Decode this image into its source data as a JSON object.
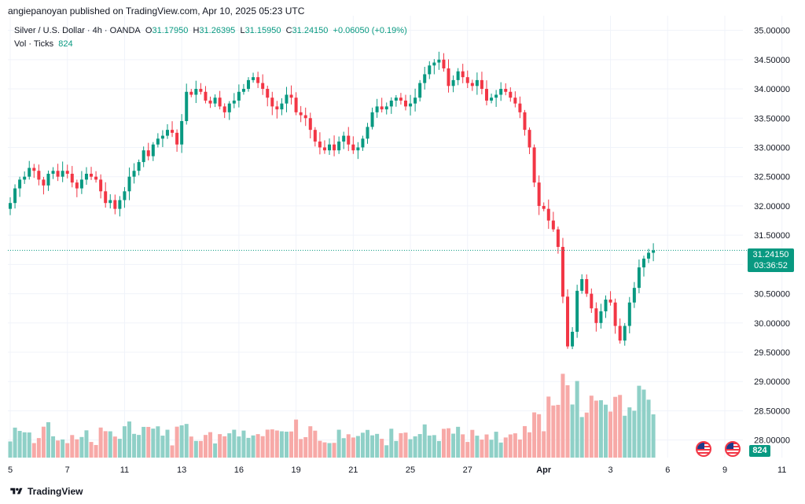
{
  "header": {
    "published": "angiepanoyan published on TradingView.com, Apr 10, 2025 05:23 UTC"
  },
  "legend": {
    "symbol": "Silver / U.S. Dollar · 4h · OANDA",
    "o_label": "O",
    "o": "31.17950",
    "h_label": "H",
    "h": "31.26395",
    "l_label": "L",
    "l": "31.15950",
    "c_label": "C",
    "c": "31.24150",
    "change": "+0.06050 (+0.19%)",
    "vol_label": "Vol · Ticks",
    "vol_value": "824"
  },
  "price_badge": {
    "price": "31.24150",
    "countdown": "03:36:52"
  },
  "volume_badge": "824",
  "footer": {
    "brand": "TradingView"
  },
  "colors": {
    "up": "#089981",
    "down": "#f23645",
    "vol_up": "#8fd0c7",
    "vol_down": "#f7a9a7",
    "grid": "#f0f3fa"
  },
  "chart_data": {
    "type": "candlestick",
    "title": "Silver / U.S. Dollar · 4h · OANDA",
    "y_axis": {
      "min": 27.7,
      "max": 35.25,
      "ticks": [
        "35.00000",
        "34.50000",
        "34.00000",
        "33.50000",
        "33.00000",
        "32.50000",
        "32.00000",
        "31.50000",
        "31.00000",
        "30.50000",
        "30.00000",
        "29.50000",
        "29.00000",
        "28.50000",
        "28.00000"
      ]
    },
    "x_labels": [
      {
        "i": 0,
        "label": "5"
      },
      {
        "i": 12,
        "label": "7"
      },
      {
        "i": 24,
        "label": "11"
      },
      {
        "i": 36,
        "label": "13"
      },
      {
        "i": 48,
        "label": "16"
      },
      {
        "i": 60,
        "label": "19"
      },
      {
        "i": 72,
        "label": "21"
      },
      {
        "i": 84,
        "label": "25"
      },
      {
        "i": 96,
        "label": "27"
      },
      {
        "i": 112,
        "label": "Apr"
      },
      {
        "i": 126,
        "label": "3"
      },
      {
        "i": 138,
        "label": "6"
      },
      {
        "i": 150,
        "label": "9"
      },
      {
        "i": 162,
        "label": "11"
      }
    ],
    "last_price": 31.2415,
    "closes": [
      32.05,
      32.3,
      32.45,
      32.5,
      32.65,
      32.6,
      32.45,
      32.35,
      32.55,
      32.6,
      32.5,
      32.6,
      32.55,
      32.4,
      32.3,
      32.45,
      32.55,
      32.5,
      32.45,
      32.25,
      32.05,
      32.1,
      31.95,
      32.1,
      32.25,
      32.5,
      32.6,
      32.75,
      32.95,
      32.85,
      33.05,
      33.15,
      33.2,
      33.3,
      33.25,
      33.05,
      33.45,
      33.95,
      33.9,
      34.0,
      33.95,
      33.8,
      33.75,
      33.85,
      33.7,
      33.6,
      33.75,
      33.8,
      33.95,
      34.0,
      34.15,
      34.2,
      34.1,
      34.0,
      33.85,
      33.7,
      33.65,
      33.75,
      33.9,
      33.85,
      33.6,
      33.55,
      33.5,
      33.3,
      33.1,
      33.0,
      32.95,
      33.05,
      32.95,
      33.1,
      33.2,
      33.05,
      32.95,
      33.0,
      33.15,
      33.35,
      33.6,
      33.7,
      33.65,
      33.7,
      33.8,
      33.85,
      33.8,
      33.7,
      33.75,
      33.85,
      34.1,
      34.25,
      34.4,
      34.45,
      34.5,
      34.35,
      34.05,
      34.15,
      34.3,
      34.2,
      34.1,
      34.05,
      34.15,
      34.0,
      33.8,
      33.85,
      33.9,
      34.0,
      33.95,
      33.85,
      33.75,
      33.6,
      33.3,
      33.0,
      32.4,
      32.0,
      31.95,
      31.75,
      31.6,
      31.3,
      30.45,
      29.6,
      29.85,
      30.55,
      30.75,
      30.5,
      30.25,
      30.0,
      30.2,
      30.4,
      30.35,
      29.95,
      29.7,
      29.95,
      30.35,
      30.6,
      30.95,
      31.1,
      31.2,
      31.24
    ],
    "volume_max": 29.5,
    "volume_base": 27.6
  }
}
